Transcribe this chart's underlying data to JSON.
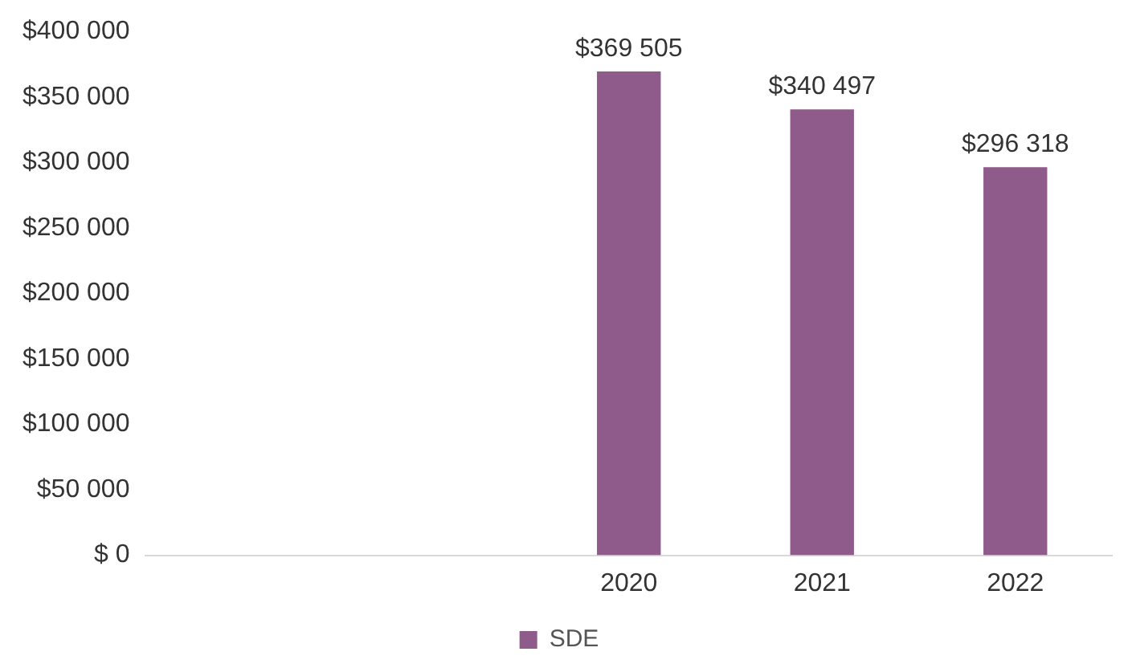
{
  "chart_data": {
    "type": "bar",
    "categories": [
      null,
      null,
      "2020",
      "2021",
      "2022"
    ],
    "series": [
      {
        "name": "SDE",
        "color": "#8e5b8a",
        "values": [
          null,
          null,
          369505,
          340497,
          296318
        ],
        "value_labels": [
          null,
          null,
          "$369 505",
          "$340 497",
          "$296 318"
        ]
      }
    ],
    "ylim": [
      0,
      400000
    ],
    "yticks": [
      {
        "value": 0,
        "label": "$ 0"
      },
      {
        "value": 50000,
        "label": "$50 000"
      },
      {
        "value": 100000,
        "label": "$100 000"
      },
      {
        "value": 150000,
        "label": "$150 000"
      },
      {
        "value": 200000,
        "label": "$200 000"
      },
      {
        "value": 250000,
        "label": "$250 000"
      },
      {
        "value": 300000,
        "label": "$300 000"
      },
      {
        "value": 350000,
        "label": "$350 000"
      },
      {
        "value": 400000,
        "label": "$400 000"
      }
    ],
    "grid": false,
    "legend": "bottom"
  }
}
